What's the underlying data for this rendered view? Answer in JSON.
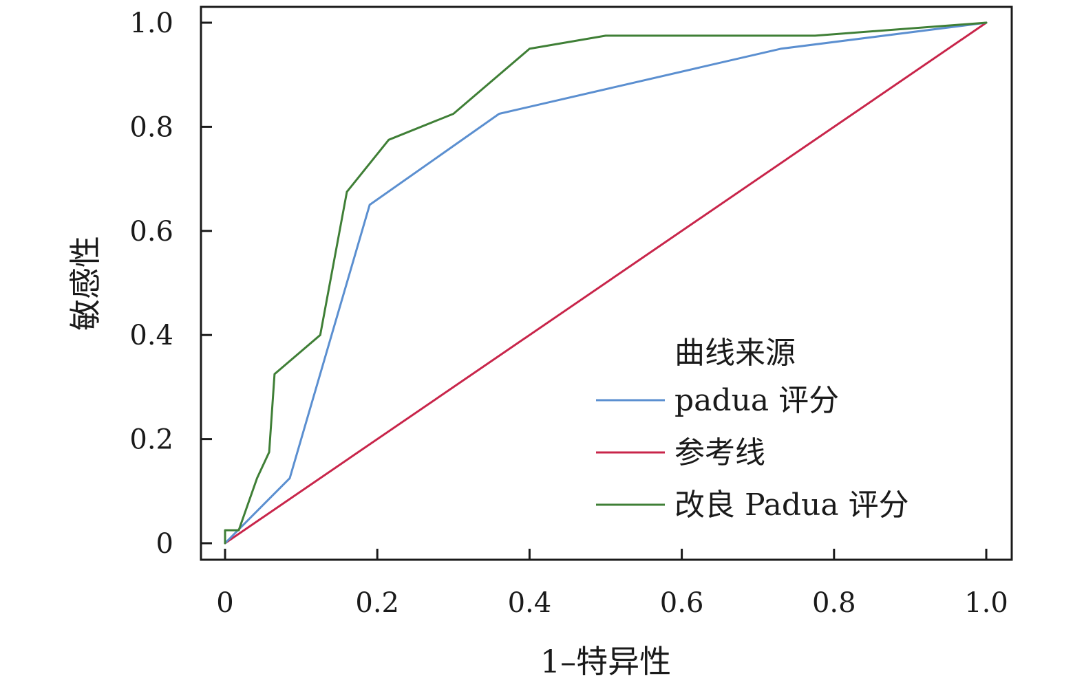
{
  "chart_data": {
    "type": "line",
    "title": "",
    "xlabel": "1–特异性",
    "ylabel": "敏感性",
    "xlim": [
      0,
      1
    ],
    "ylim": [
      0,
      1
    ],
    "grid": false,
    "x_ticks": [
      0,
      0.2,
      0.4,
      0.6,
      0.8,
      1.0
    ],
    "x_tick_labels": [
      "0",
      "0.2",
      "0.4",
      "0.6",
      "0.8",
      "1.0"
    ],
    "y_ticks": [
      0,
      0.2,
      0.4,
      0.6,
      0.8,
      1.0
    ],
    "y_tick_labels": [
      "0",
      "0.2",
      "0.4",
      "0.6",
      "0.8",
      "1.0"
    ],
    "legend": {
      "title": "曲线来源",
      "placement": "bottom-right"
    },
    "series": [
      {
        "name": "padua 评分",
        "color": "#5b8fd0",
        "x": [
          0,
          0.085,
          0.19,
          0.36,
          0.73,
          1.0
        ],
        "y": [
          0,
          0.125,
          0.65,
          0.825,
          0.95,
          1.0
        ]
      },
      {
        "name": "参考线",
        "color": "#c8254a",
        "x": [
          0,
          1.0
        ],
        "y": [
          0,
          1.0
        ]
      },
      {
        "name": "改良 Padua 评分",
        "color": "#3f7f36",
        "x": [
          0,
          0,
          0.018,
          0.042,
          0.058,
          0.065,
          0.125,
          0.16,
          0.215,
          0.3,
          0.4,
          0.5,
          0.775,
          1.0
        ],
        "y": [
          0,
          0.025,
          0.025,
          0.125,
          0.175,
          0.325,
          0.4,
          0.675,
          0.775,
          0.825,
          0.95,
          0.975,
          0.975,
          1.0
        ]
      }
    ]
  }
}
